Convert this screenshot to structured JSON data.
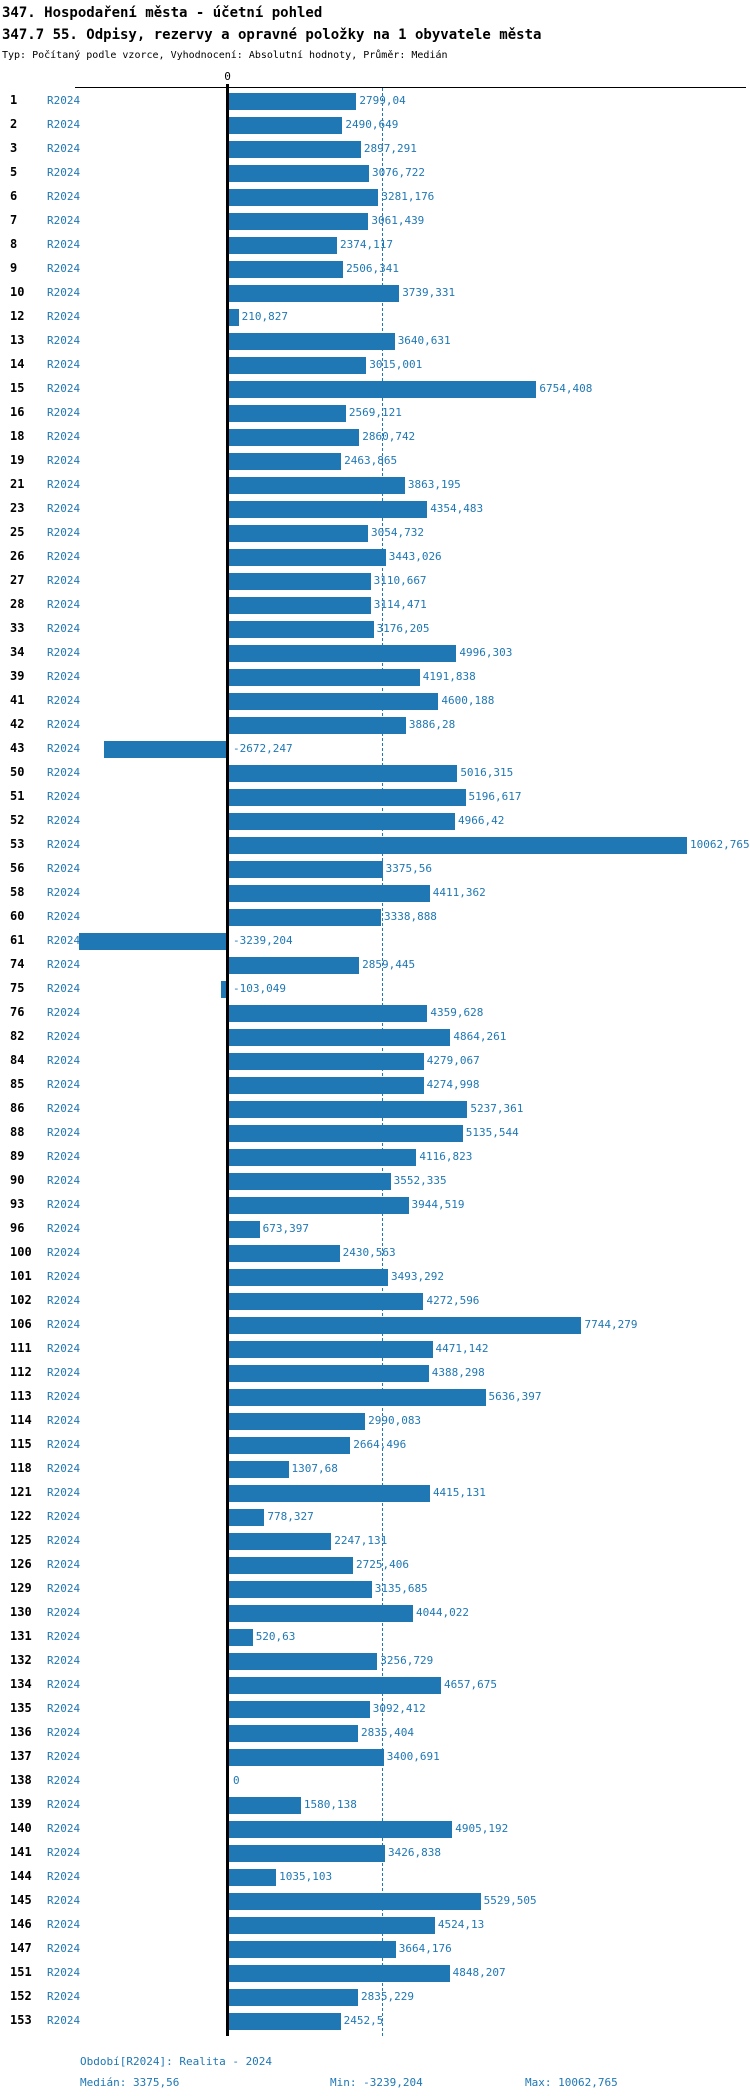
{
  "header": {
    "title": "347. Hospodaření města - účetní pohled",
    "subtitle": "347.7 55. Odpisy, rezervy a opravné položky na 1 obyvatele města",
    "meta": "Typ: Počítaný podle vzorce, Vyhodnocení: Absolutní hodnoty, Průměr: Medián"
  },
  "axis": {
    "zero_label": "0"
  },
  "footer": {
    "period": "Období[R2024]: Realita - 2024",
    "median": "Medián: 3375,56",
    "min": "Min: -3239,204",
    "max": "Max: 10062,765"
  },
  "chart_data": {
    "type": "bar",
    "orientation": "horizontal",
    "title": "347.7 55. Odpisy, rezervy a opravné položky na 1 obyvatele města",
    "series_name": "R2024",
    "period_label": "R2024",
    "bar_color": "#1f77b4",
    "median_line_color": "#1f77b4",
    "axis_color": "#000000",
    "xlim": [
      -3400,
      10400
    ],
    "median": 3375.56,
    "min": -3239.204,
    "max": 10062.765,
    "categories": [
      "1",
      "2",
      "3",
      "5",
      "6",
      "7",
      "8",
      "9",
      "10",
      "12",
      "13",
      "14",
      "15",
      "16",
      "18",
      "19",
      "21",
      "23",
      "25",
      "26",
      "27",
      "28",
      "33",
      "34",
      "39",
      "41",
      "42",
      "43",
      "50",
      "51",
      "52",
      "53",
      "56",
      "58",
      "60",
      "61",
      "74",
      "75",
      "76",
      "82",
      "84",
      "85",
      "86",
      "88",
      "89",
      "90",
      "93",
      "96",
      "100",
      "101",
      "102",
      "106",
      "111",
      "112",
      "113",
      "114",
      "115",
      "118",
      "121",
      "122",
      "125",
      "126",
      "129",
      "130",
      "131",
      "132",
      "134",
      "135",
      "136",
      "137",
      "138",
      "139",
      "140",
      "141",
      "144",
      "145",
      "146",
      "147",
      "151",
      "152",
      "153"
    ],
    "values": [
      2799.04,
      2490.649,
      2897.291,
      3076.722,
      3281.176,
      3061.439,
      2374.117,
      2506.341,
      3739.331,
      210.827,
      3640.631,
      3015.001,
      6754.408,
      2569.121,
      2860.742,
      2463.865,
      3863.195,
      4354.483,
      3054.732,
      3443.026,
      3110.667,
      3114.471,
      3176.205,
      4996.303,
      4191.838,
      4600.188,
      3886.28,
      -2672.247,
      5016.315,
      5196.617,
      4966.42,
      10062.765,
      3375.56,
      4411.362,
      3338.888,
      -3239.204,
      2859.445,
      -103.049,
      4359.628,
      4864.261,
      4279.067,
      4274.998,
      5237.361,
      5135.544,
      4116.823,
      3552.335,
      3944.519,
      673.397,
      2430.563,
      3493.292,
      4272.596,
      7744.279,
      4471.142,
      4388.298,
      5636.397,
      2990.083,
      2664.496,
      1307.68,
      4415.131,
      778.327,
      2247.131,
      2725.406,
      3135.685,
      4044.022,
      520.63,
      3256.729,
      4657.675,
      3092.412,
      2835.404,
      3400.691,
      0,
      1580.138,
      4905.192,
      3426.838,
      1035.103,
      5529.505,
      4524.13,
      3664.176,
      4848.207,
      2835.229,
      2452.5
    ],
    "value_labels": [
      "2799,04",
      "2490,649",
      "2897,291",
      "3076,722",
      "3281,176",
      "3061,439",
      "2374,117",
      "2506,341",
      "3739,331",
      "210,827",
      "3640,631",
      "3015,001",
      "6754,408",
      "2569,121",
      "2860,742",
      "2463,865",
      "3863,195",
      "4354,483",
      "3054,732",
      "3443,026",
      "3110,667",
      "3114,471",
      "3176,205",
      "4996,303",
      "4191,838",
      "4600,188",
      "3886,28",
      "-2672,247",
      "5016,315",
      "5196,617",
      "4966,42",
      "10062,765",
      "3375,56",
      "4411,362",
      "3338,888",
      "-3239,204",
      "2859,445",
      "-103,049",
      "4359,628",
      "4864,261",
      "4279,067",
      "4274,998",
      "5237,361",
      "5135,544",
      "4116,823",
      "3552,335",
      "3944,519",
      "673,397",
      "2430,563",
      "3493,292",
      "4272,596",
      "7744,279",
      "4471,142",
      "4388,298",
      "5636,397",
      "2990,083",
      "2664,496",
      "1307,68",
      "4415,131",
      "778,327",
      "2247,131",
      "2725,406",
      "3135,685",
      "4044,022",
      "520,63",
      "3256,729",
      "4657,675",
      "3092,412",
      "2835,404",
      "3400,691",
      "0",
      "1580,138",
      "4905,192",
      "3426,838",
      "1035,103",
      "5529,505",
      "4524,13",
      "3664,176",
      "4848,207",
      "2835,229",
      "2452,5"
    ]
  }
}
